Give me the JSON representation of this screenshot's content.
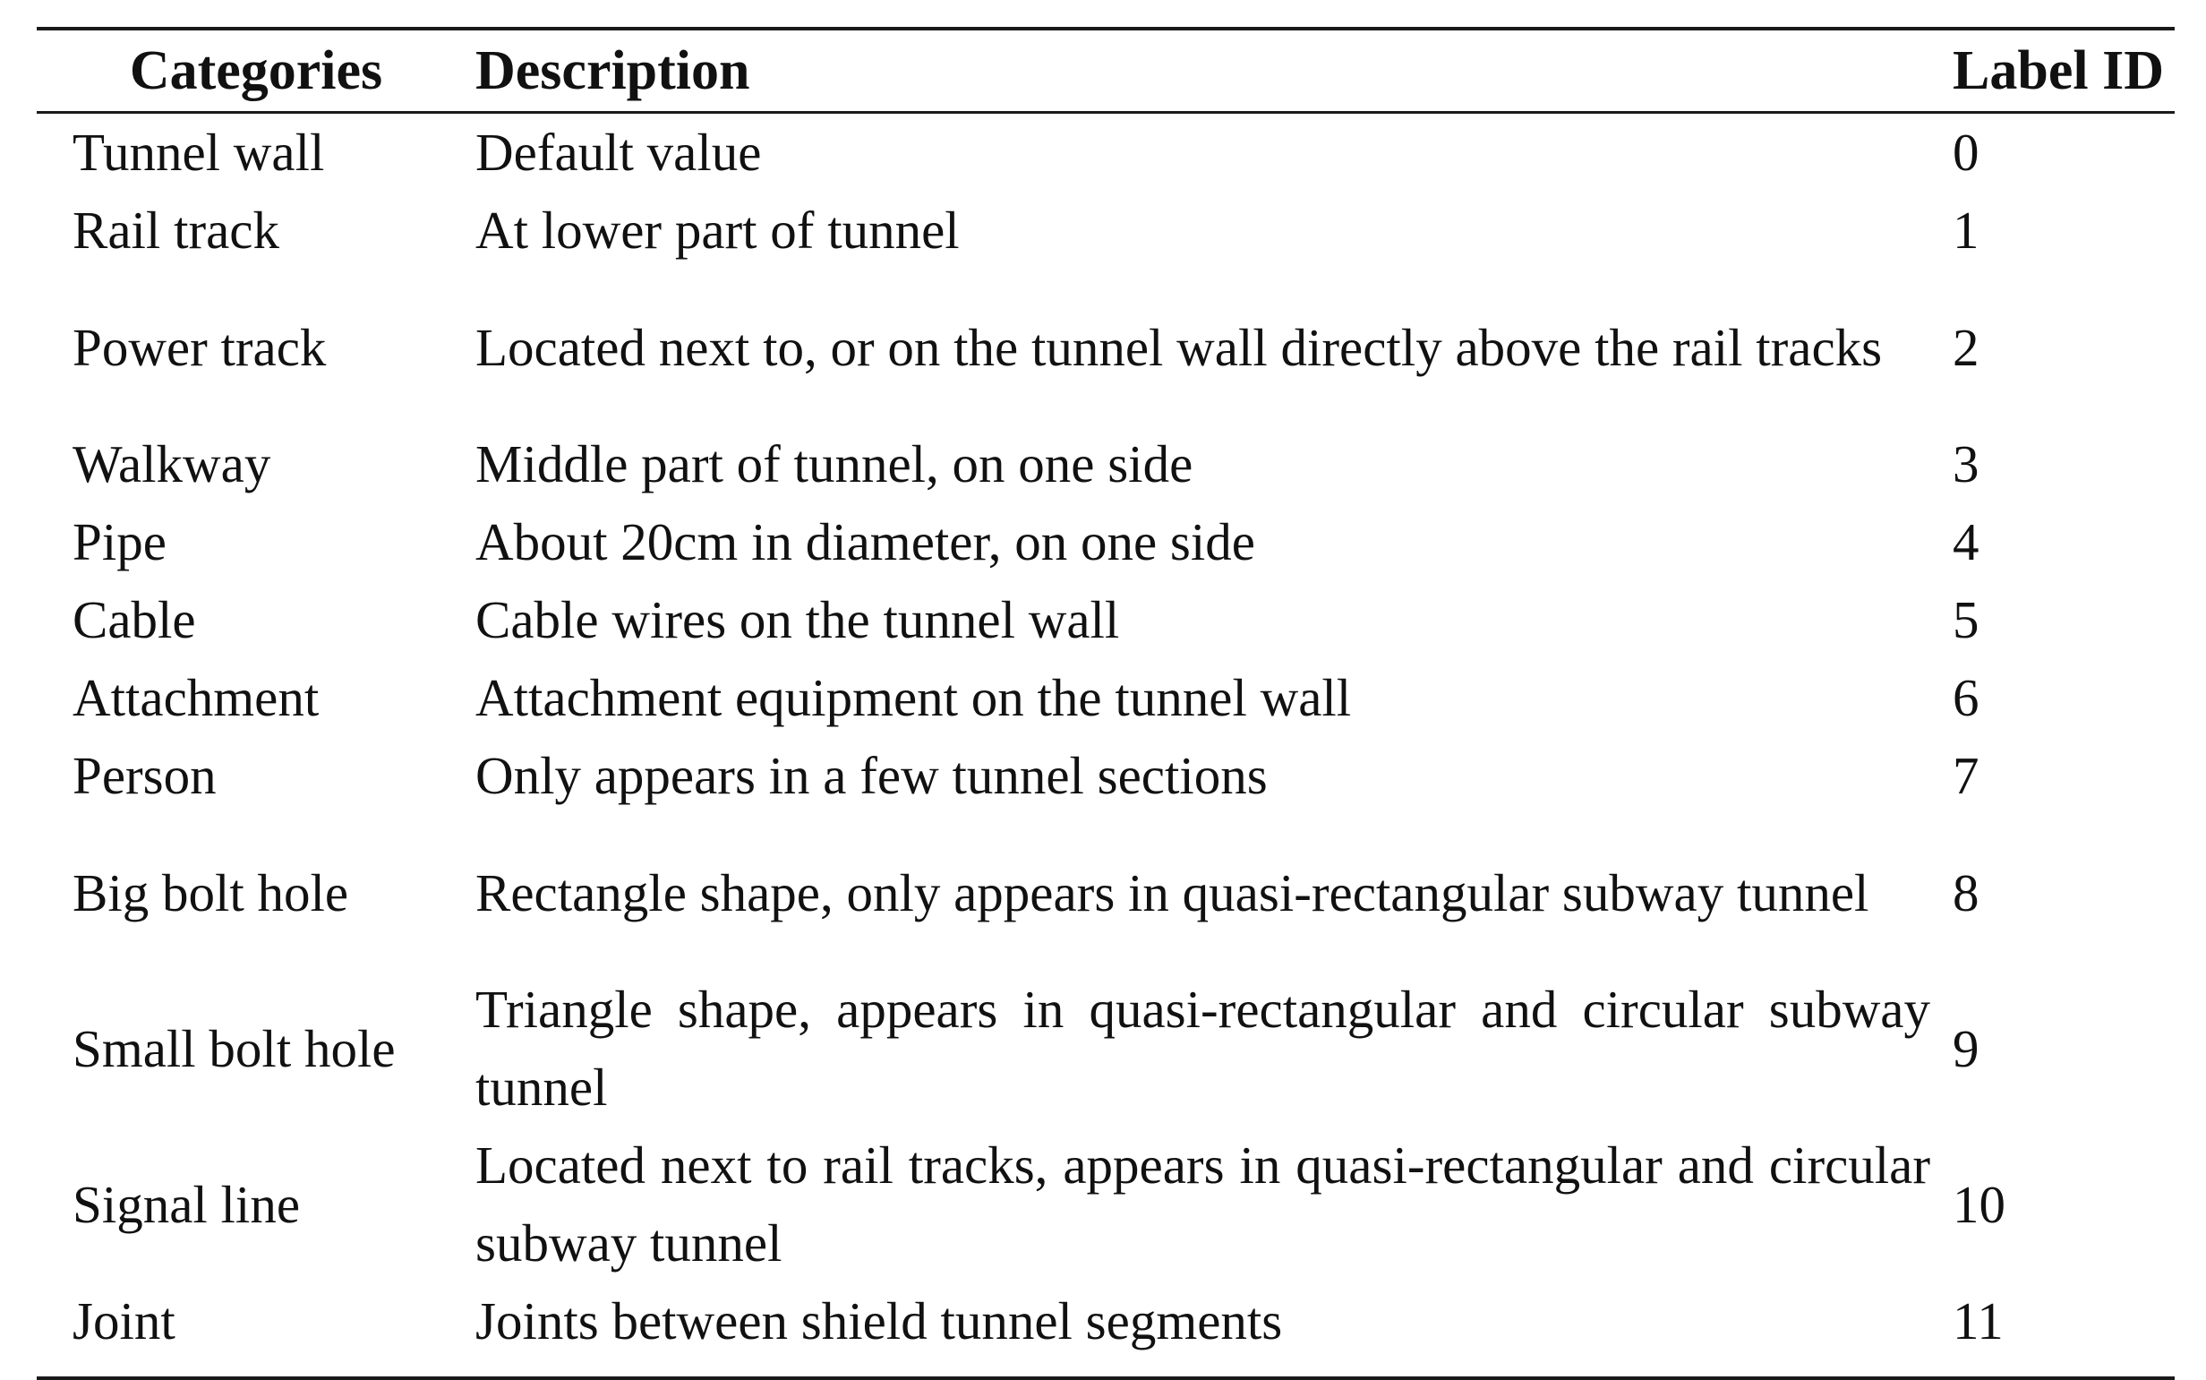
{
  "table": {
    "headers": {
      "categories": "Categories",
      "description": "Description",
      "label_id": "Label ID"
    },
    "rows": [
      {
        "category": "Tunnel wall",
        "description": "Default value",
        "label_id": "0"
      },
      {
        "category": "Rail track",
        "description": "At lower part of tunnel",
        "label_id": "1"
      },
      {
        "category": "Power track",
        "description": "Located next to, or on the tunnel wall directly above the rail tracks",
        "label_id": "2"
      },
      {
        "category": "Walkway",
        "description": "Middle part of tunnel, on one side",
        "label_id": "3"
      },
      {
        "category": "Pipe",
        "description": "About 20cm in diameter, on one side",
        "label_id": "4"
      },
      {
        "category": "Cable",
        "description": "Cable wires on the tunnel wall",
        "label_id": "5"
      },
      {
        "category": "Attachment",
        "description": "Attachment equipment on the tunnel wall",
        "label_id": "6"
      },
      {
        "category": "Person",
        "description": "Only appears in a few tunnel sections",
        "label_id": "7"
      },
      {
        "category": "Big bolt hole",
        "description": "Rectangle shape, only appears in quasi-rectangular subway tunnel",
        "label_id": "8"
      },
      {
        "category": "Small bolt hole",
        "description": "Triangle shape, appears in quasi-rectangular and circular subway tunnel",
        "label_id": "9"
      },
      {
        "category": "Signal line",
        "description": "Located next to rail tracks, appears in quasi-rectangular and circular subway tunnel",
        "label_id": "10"
      },
      {
        "category": "Joint",
        "description": "Joints between shield tunnel segments",
        "label_id": "11"
      }
    ]
  }
}
